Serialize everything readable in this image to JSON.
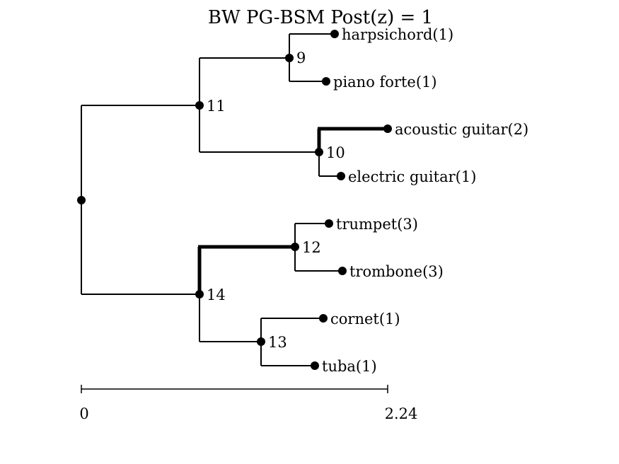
{
  "title": "BW PG-BSM Post(z) = 1",
  "scale": {
    "min_label": "0",
    "max_label": "2.24"
  },
  "tree": {
    "leaves": [
      {
        "id": "harpsichord",
        "label": "harpsichord(1)"
      },
      {
        "id": "piano",
        "label": "piano forte(1)"
      },
      {
        "id": "acoustic",
        "label": "acoustic guitar(2)"
      },
      {
        "id": "electric",
        "label": "electric guitar(1)"
      },
      {
        "id": "trumpet",
        "label": "trumpet(3)"
      },
      {
        "id": "trombone",
        "label": "trombone(3)"
      },
      {
        "id": "cornet",
        "label": "cornet(1)"
      },
      {
        "id": "tuba",
        "label": "tuba(1)"
      }
    ],
    "internal_nodes": [
      {
        "id": "n9",
        "label": "9",
        "children": [
          "harpsichord",
          "piano"
        ]
      },
      {
        "id": "n10",
        "label": "10",
        "children": [
          "acoustic",
          "electric"
        ]
      },
      {
        "id": "n11",
        "label": "11",
        "children": [
          "n9",
          "n10"
        ]
      },
      {
        "id": "n12",
        "label": "12",
        "children": [
          "trumpet",
          "trombone"
        ]
      },
      {
        "id": "n13",
        "label": "13",
        "children": [
          "cornet",
          "tuba"
        ]
      },
      {
        "id": "n14",
        "label": "14",
        "children": [
          "n12",
          "n13"
        ]
      },
      {
        "id": "root",
        "label": "",
        "children": [
          "n11",
          "n14"
        ]
      }
    ],
    "highlighted_branches": [
      "acoustic",
      "n12"
    ]
  }
}
